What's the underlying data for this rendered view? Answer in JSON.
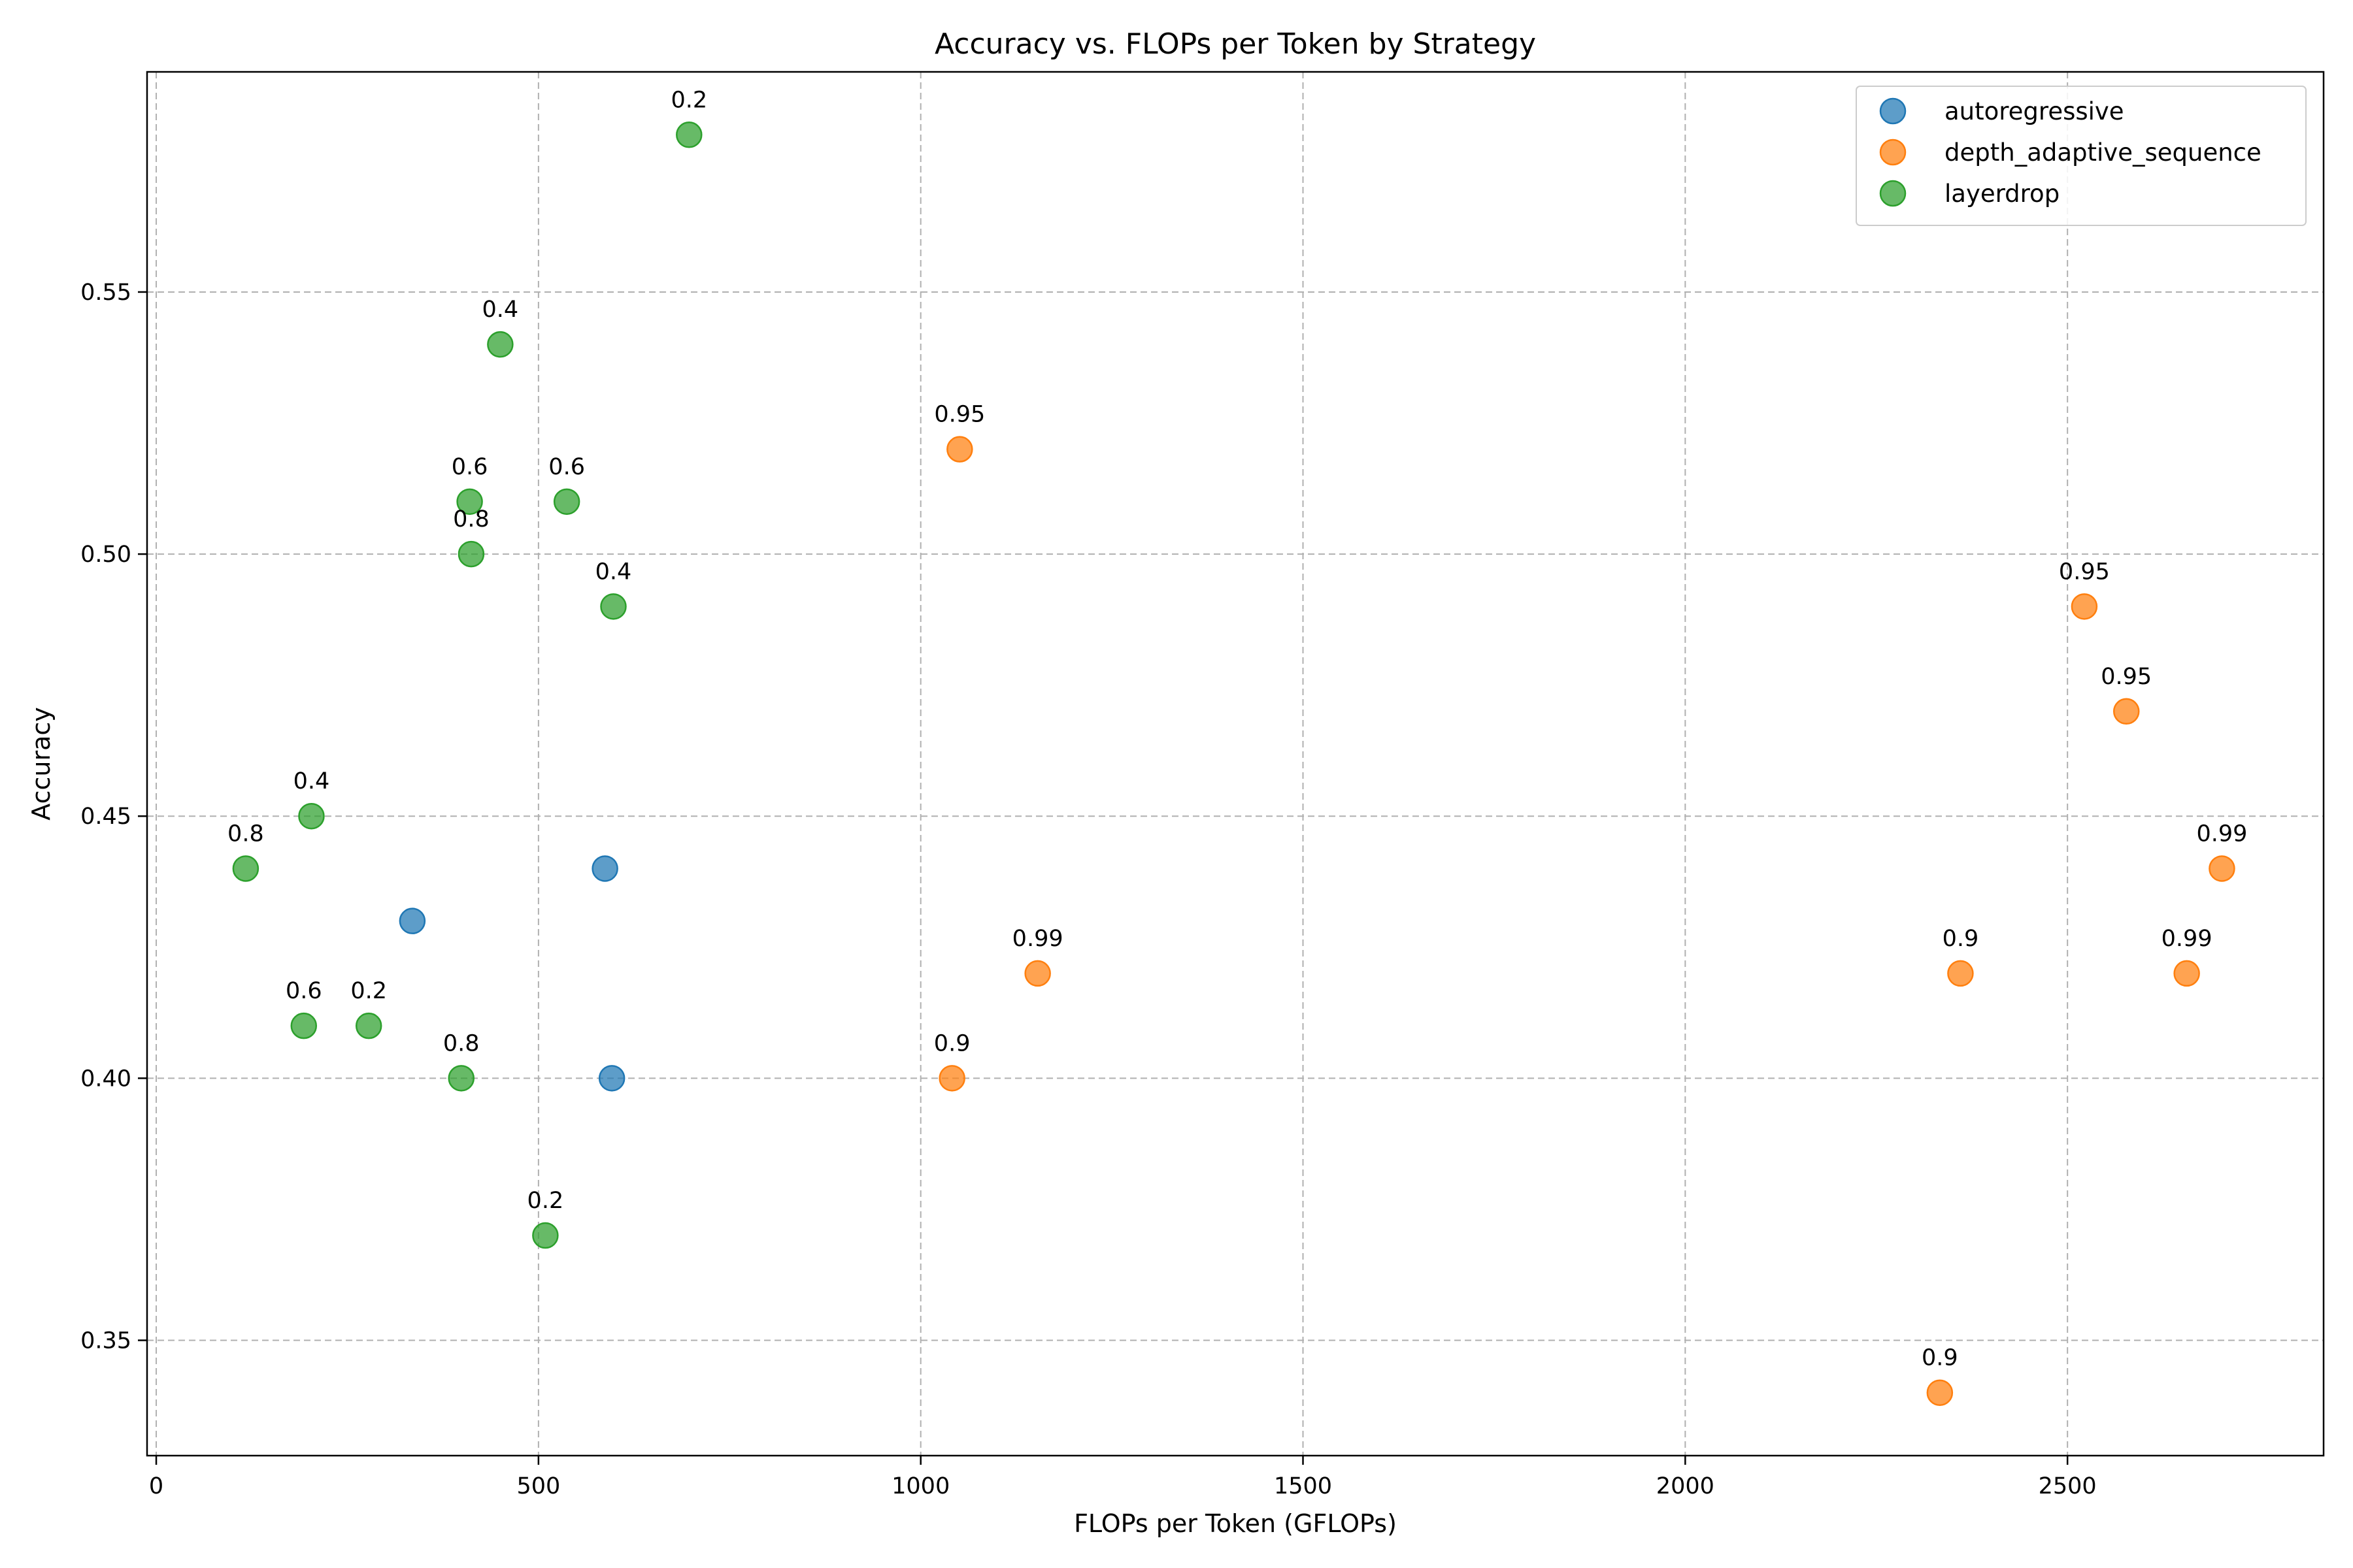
{
  "chart_data": {
    "type": "scatter",
    "title": "Accuracy vs. FLOPs per Token by Strategy",
    "xlabel": "FLOPs per Token (GFLOPs)",
    "ylabel": "Accuracy",
    "xlim": [
      -12,
      2835
    ],
    "ylim": [
      0.328,
      0.592
    ],
    "xticks": [
      0,
      500,
      1000,
      1500,
      2000,
      2500
    ],
    "xtick_labels": [
      "0",
      "500",
      "1000",
      "1500",
      "2000",
      "2500"
    ],
    "yticks": [
      0.35,
      0.4,
      0.45,
      0.5,
      0.55
    ],
    "ytick_labels": [
      "0.35",
      "0.40",
      "0.45",
      "0.50",
      "0.55"
    ],
    "grid": true,
    "legend_position": "top-right",
    "series": [
      {
        "name": "autoregressive",
        "color": "#1f77b4",
        "points": [
          {
            "x": 335,
            "y": 0.43,
            "label": ""
          },
          {
            "x": 587,
            "y": 0.44,
            "label": ""
          },
          {
            "x": 596,
            "y": 0.4,
            "label": ""
          }
        ]
      },
      {
        "name": "depth_adaptive_sequence",
        "color": "#ff7f0e",
        "points": [
          {
            "x": 1051,
            "y": 0.52,
            "label": "0.95"
          },
          {
            "x": 1153,
            "y": 0.42,
            "label": "0.99"
          },
          {
            "x": 1041,
            "y": 0.4,
            "label": "0.9"
          },
          {
            "x": 2333,
            "y": 0.34,
            "label": "0.9"
          },
          {
            "x": 2360,
            "y": 0.42,
            "label": "0.9"
          },
          {
            "x": 2522,
            "y": 0.49,
            "label": "0.95"
          },
          {
            "x": 2577,
            "y": 0.47,
            "label": "0.95"
          },
          {
            "x": 2656,
            "y": 0.42,
            "label": "0.99"
          },
          {
            "x": 2702,
            "y": 0.44,
            "label": "0.99"
          }
        ]
      },
      {
        "name": "layerdrop",
        "color": "#2ca02c",
        "points": [
          {
            "x": 697,
            "y": 0.58,
            "label": "0.2"
          },
          {
            "x": 450,
            "y": 0.54,
            "label": "0.4"
          },
          {
            "x": 410,
            "y": 0.51,
            "label": "0.6"
          },
          {
            "x": 537,
            "y": 0.51,
            "label": "0.6"
          },
          {
            "x": 412,
            "y": 0.5,
            "label": "0.8"
          },
          {
            "x": 598,
            "y": 0.49,
            "label": "0.4"
          },
          {
            "x": 203,
            "y": 0.45,
            "label": "0.4"
          },
          {
            "x": 117,
            "y": 0.44,
            "label": "0.8"
          },
          {
            "x": 193,
            "y": 0.41,
            "label": "0.6"
          },
          {
            "x": 278,
            "y": 0.41,
            "label": "0.2"
          },
          {
            "x": 399,
            "y": 0.4,
            "label": "0.8"
          },
          {
            "x": 509,
            "y": 0.37,
            "label": "0.2"
          }
        ]
      }
    ]
  }
}
